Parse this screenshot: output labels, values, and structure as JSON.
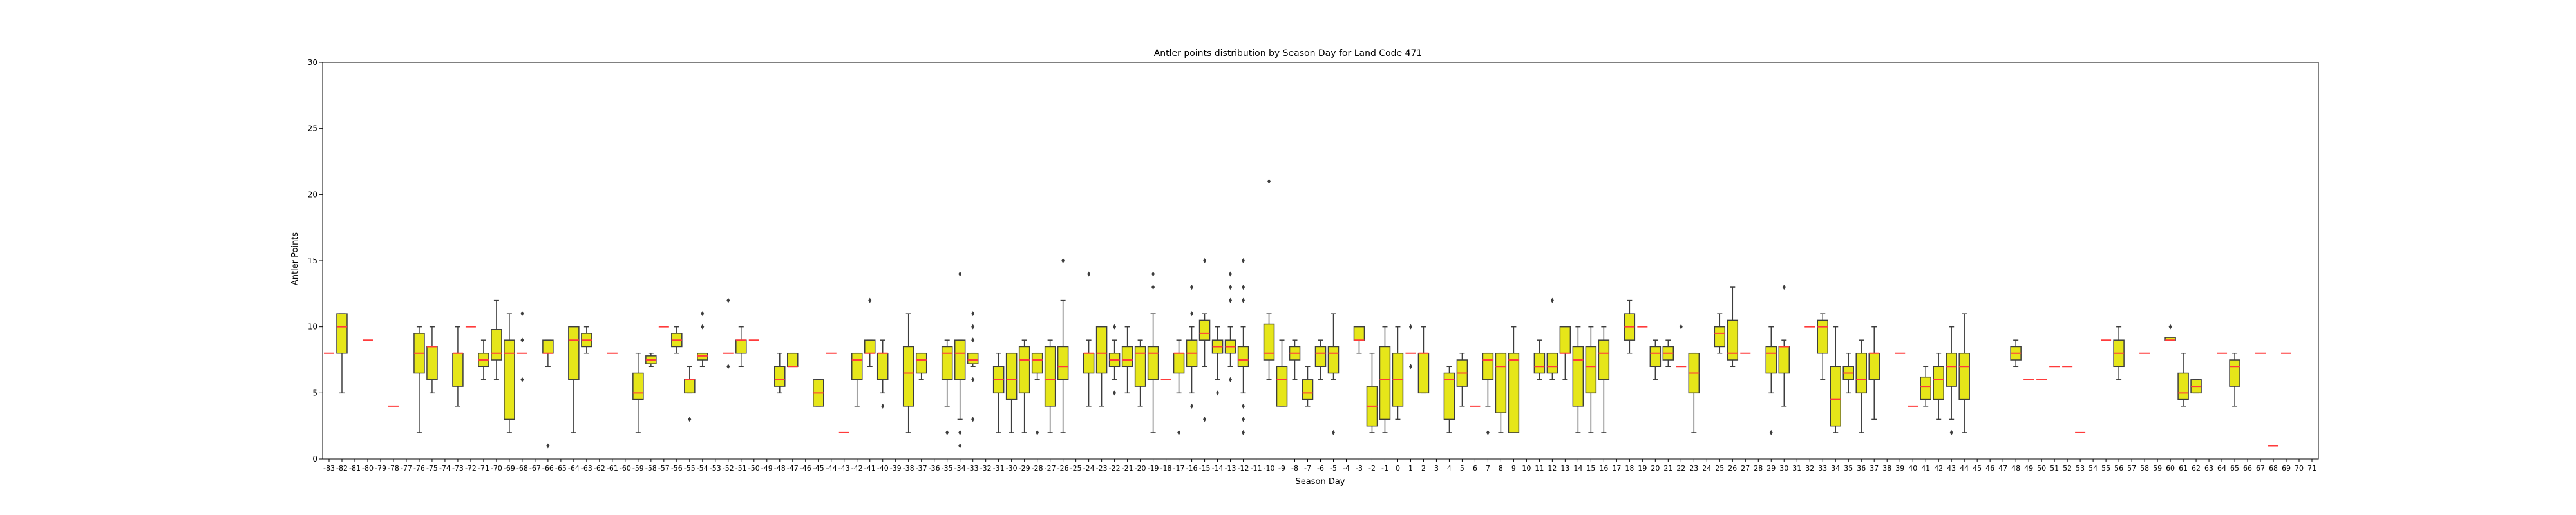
{
  "chart_data": {
    "type": "box",
    "title": "Antler points distribution by Season Day for Land Code 471",
    "xlabel": "Season Day",
    "ylabel": "Antler Points",
    "ylim": [
      0,
      30
    ],
    "yticks": [
      0,
      5,
      10,
      15,
      20,
      25,
      30
    ],
    "grid": false,
    "box_color": "#e6e619",
    "median_color": "#ff3b3b",
    "x_categories": [
      "-83",
      "-82",
      "-81",
      "-80",
      "-79",
      "-78",
      "-77",
      "-76",
      "-75",
      "-74",
      "-73",
      "-72",
      "-71",
      "-70",
      "-69",
      "-68",
      "-67",
      "-66",
      "-65",
      "-64",
      "-63",
      "-62",
      "-61",
      "-60",
      "-59",
      "-58",
      "-57",
      "-56",
      "-55",
      "-54",
      "-53",
      "-52",
      "-51",
      "-50",
      "-49",
      "-48",
      "-47",
      "-46",
      "-45",
      "-44",
      "-43",
      "-42",
      "-41",
      "-40",
      "-39",
      "-38",
      "-37",
      "-36",
      "-35",
      "-34",
      "-33",
      "-32",
      "-31",
      "-30",
      "-29",
      "-28",
      "-27",
      "-26",
      "-25",
      "-24",
      "-23",
      "-22",
      "-21",
      "-20",
      "-19",
      "-18",
      "-17",
      "-16",
      "-15",
      "-14",
      "-13",
      "-12",
      "-11",
      "-10",
      "-9",
      "-8",
      "-7",
      "-6",
      "-5",
      "-4",
      "-3",
      "-2",
      "-1",
      "0",
      "1",
      "2",
      "3",
      "4",
      "5",
      "6",
      "7",
      "8",
      "9",
      "10",
      "11",
      "12",
      "13",
      "14",
      "15",
      "16",
      "17",
      "18",
      "19",
      "20",
      "21",
      "22",
      "23",
      "24",
      "25",
      "26",
      "27",
      "28",
      "29",
      "30",
      "31",
      "32",
      "33",
      "34",
      "35",
      "36",
      "37",
      "38",
      "39",
      "40",
      "41",
      "42",
      "43",
      "44",
      "45",
      "46",
      "47",
      "48",
      "49",
      "50",
      "51",
      "52",
      "53",
      "54",
      "55",
      "56",
      "57",
      "58",
      "59",
      "60",
      "61",
      "62",
      "63",
      "64",
      "65",
      "66",
      "67",
      "68",
      "69",
      "70",
      "71"
    ],
    "boxes": [
      {
        "x": "-83",
        "median": 8
      },
      {
        "x": "-82",
        "q1": 8,
        "median": 10,
        "q3": 11,
        "whisker_low": 5,
        "whisker_high": 11
      },
      {
        "x": "-80",
        "median": 9
      },
      {
        "x": "-78",
        "median": 4
      },
      {
        "x": "-76",
        "q1": 6.5,
        "median": 8,
        "q3": 9.5,
        "whisker_low": 2,
        "whisker_high": 10
      },
      {
        "x": "-75",
        "q1": 6,
        "median": 8.5,
        "q3": 8.5,
        "whisker_low": 5,
        "whisker_high": 10
      },
      {
        "x": "-73",
        "q1": 5.5,
        "median": 8,
        "q3": 8,
        "whisker_low": 4,
        "whisker_high": 10
      },
      {
        "x": "-72",
        "median": 10
      },
      {
        "x": "-71",
        "q1": 7,
        "median": 7.5,
        "q3": 8,
        "whisker_low": 6,
        "whisker_high": 9
      },
      {
        "x": "-70",
        "q1": 7.5,
        "median": 8,
        "q3": 9.8,
        "whisker_low": 6,
        "whisker_high": 12
      },
      {
        "x": "-69",
        "q1": 3,
        "median": 8,
        "q3": 9,
        "whisker_low": 2,
        "whisker_high": 11
      },
      {
        "x": "-68",
        "median": 8,
        "outliers": [
          11,
          9,
          6
        ]
      },
      {
        "x": "-66",
        "q1": 8,
        "median": 8,
        "q3": 9,
        "whisker_low": 7,
        "whisker_high": 9,
        "outliers": [
          1
        ]
      },
      {
        "x": "-64",
        "q1": 6,
        "median": 9,
        "q3": 10,
        "whisker_low": 2,
        "whisker_high": 10
      },
      {
        "x": "-63",
        "q1": 8.5,
        "median": 9,
        "q3": 9.5,
        "whisker_low": 8,
        "whisker_high": 10
      },
      {
        "x": "-61",
        "median": 8
      },
      {
        "x": "-59",
        "q1": 4.5,
        "median": 5,
        "q3": 6.5,
        "whisker_low": 2,
        "whisker_high": 8
      },
      {
        "x": "-58",
        "q1": 7.2,
        "median": 7.5,
        "q3": 7.8,
        "whisker_low": 7,
        "whisker_high": 8
      },
      {
        "x": "-57",
        "median": 10
      },
      {
        "x": "-56",
        "q1": 8.5,
        "median": 9,
        "q3": 9.5,
        "whisker_low": 8,
        "whisker_high": 10
      },
      {
        "x": "-55",
        "q1": 5,
        "median": 6,
        "q3": 6,
        "whisker_low": 5,
        "whisker_high": 7,
        "outliers": [
          3
        ]
      },
      {
        "x": "-54",
        "q1": 7.5,
        "median": 7.8,
        "q3": 8,
        "whisker_low": 7,
        "whisker_high": 8,
        "outliers": [
          11,
          10
        ]
      },
      {
        "x": "-52",
        "median": 8,
        "outliers": [
          12,
          7
        ]
      },
      {
        "x": "-51",
        "q1": 8,
        "median": 9,
        "q3": 9,
        "whisker_low": 7,
        "whisker_high": 10
      },
      {
        "x": "-50",
        "median": 9
      },
      {
        "x": "-48",
        "q1": 5.5,
        "median": 6,
        "q3": 7,
        "whisker_low": 5,
        "whisker_high": 8
      },
      {
        "x": "-47",
        "q1": 7,
        "median": 7,
        "q3": 8,
        "whisker_low": 7,
        "whisker_high": 8
      },
      {
        "x": "-45",
        "q1": 4,
        "median": 5,
        "q3": 6,
        "whisker_low": 4,
        "whisker_high": 6
      },
      {
        "x": "-44",
        "median": 8
      },
      {
        "x": "-43",
        "median": 2
      },
      {
        "x": "-42",
        "q1": 6,
        "median": 7.5,
        "q3": 8,
        "whisker_low": 4,
        "whisker_high": 8
      },
      {
        "x": "-41",
        "q1": 8,
        "median": 8,
        "q3": 9,
        "whisker_low": 7,
        "whisker_high": 9,
        "outliers": [
          12
        ]
      },
      {
        "x": "-40",
        "q1": 6,
        "median": 8,
        "q3": 8,
        "whisker_low": 5,
        "whisker_high": 9,
        "outliers": [
          4
        ]
      },
      {
        "x": "-38",
        "q1": 4,
        "median": 6.5,
        "q3": 8.5,
        "whisker_low": 2,
        "whisker_high": 11
      },
      {
        "x": "-37",
        "q1": 6.5,
        "median": 7.5,
        "q3": 8,
        "whisker_low": 6,
        "whisker_high": 8
      },
      {
        "x": "-35",
        "q1": 6,
        "median": 8,
        "q3": 8.5,
        "whisker_low": 4,
        "whisker_high": 9,
        "outliers": [
          2
        ]
      },
      {
        "x": "-34",
        "q1": 6,
        "median": 8,
        "q3": 9,
        "whisker_low": 3,
        "whisker_high": 9,
        "outliers": [
          14,
          2,
          1
        ]
      },
      {
        "x": "-33",
        "q1": 7.2,
        "median": 7.5,
        "q3": 8,
        "whisker_low": 7,
        "whisker_high": 8,
        "outliers": [
          11,
          10,
          9,
          6,
          3
        ]
      },
      {
        "x": "-31",
        "q1": 5,
        "median": 6,
        "q3": 7,
        "whisker_low": 2,
        "whisker_high": 8
      },
      {
        "x": "-30",
        "q1": 4.5,
        "median": 6,
        "q3": 8,
        "whisker_low": 2,
        "whisker_high": 8
      },
      {
        "x": "-29",
        "q1": 5,
        "median": 7.5,
        "q3": 8.5,
        "whisker_low": 2,
        "whisker_high": 9
      },
      {
        "x": "-28",
        "q1": 6.5,
        "median": 7.5,
        "q3": 8,
        "whisker_low": 6,
        "whisker_high": 8,
        "outliers": [
          2
        ]
      },
      {
        "x": "-27",
        "q1": 4,
        "median": 6,
        "q3": 8.5,
        "whisker_low": 2,
        "whisker_high": 9
      },
      {
        "x": "-26",
        "q1": 6,
        "median": 7,
        "q3": 8.5,
        "whisker_low": 2,
        "whisker_high": 12,
        "outliers": [
          15
        ]
      },
      {
        "x": "-24",
        "q1": 6.5,
        "median": 8,
        "q3": 8,
        "whisker_low": 4,
        "whisker_high": 9,
        "outliers": [
          14
        ]
      },
      {
        "x": "-23",
        "q1": 6.5,
        "median": 8,
        "q3": 10,
        "whisker_low": 4,
        "whisker_high": 10
      },
      {
        "x": "-22",
        "q1": 7,
        "median": 7.5,
        "q3": 8,
        "whisker_low": 6,
        "whisker_high": 9,
        "outliers": [
          10,
          5
        ]
      },
      {
        "x": "-21",
        "q1": 7,
        "median": 7.5,
        "q3": 8.5,
        "whisker_low": 5,
        "whisker_high": 10
      },
      {
        "x": "-20",
        "q1": 5.5,
        "median": 8,
        "q3": 8.5,
        "whisker_low": 4,
        "whisker_high": 9
      },
      {
        "x": "-19",
        "q1": 6,
        "median": 8,
        "q3": 8.5,
        "whisker_low": 2,
        "whisker_high": 11,
        "outliers": [
          14,
          13
        ]
      },
      {
        "x": "-18",
        "median": 6
      },
      {
        "x": "-17",
        "q1": 6.5,
        "median": 8,
        "q3": 8,
        "whisker_low": 5,
        "whisker_high": 9,
        "outliers": [
          2
        ]
      },
      {
        "x": "-16",
        "q1": 7,
        "median": 8,
        "q3": 9,
        "whisker_low": 5,
        "whisker_high": 10,
        "outliers": [
          13,
          11,
          4
        ]
      },
      {
        "x": "-15",
        "q1": 9,
        "median": 9.5,
        "q3": 10.5,
        "whisker_low": 7,
        "whisker_high": 11,
        "outliers": [
          15,
          3
        ]
      },
      {
        "x": "-14",
        "q1": 8,
        "median": 8.5,
        "q3": 9,
        "whisker_low": 6,
        "whisker_high": 10,
        "outliers": [
          5
        ]
      },
      {
        "x": "-13",
        "q1": 8,
        "median": 8.5,
        "q3": 9,
        "whisker_low": 7,
        "whisker_high": 10,
        "outliers": [
          14,
          13,
          12,
          6
        ]
      },
      {
        "x": "-12",
        "q1": 7,
        "median": 7.5,
        "q3": 8.5,
        "whisker_low": 5,
        "whisker_high": 10,
        "outliers": [
          15,
          13,
          12,
          4,
          3,
          2
        ]
      },
      {
        "x": "-10",
        "q1": 7.5,
        "median": 8,
        "q3": 10.2,
        "whisker_low": 6,
        "whisker_high": 11,
        "outliers": [
          21
        ]
      },
      {
        "x": "-9",
        "q1": 4,
        "median": 6,
        "q3": 7,
        "whisker_low": 4,
        "whisker_high": 9
      },
      {
        "x": "-8",
        "q1": 7.5,
        "median": 8,
        "q3": 8.5,
        "whisker_low": 6,
        "whisker_high": 9
      },
      {
        "x": "-7",
        "q1": 4.5,
        "median": 5,
        "q3": 6,
        "whisker_low": 4,
        "whisker_high": 7
      },
      {
        "x": "-6",
        "q1": 7,
        "median": 8,
        "q3": 8.5,
        "whisker_low": 6,
        "whisker_high": 9
      },
      {
        "x": "-5",
        "q1": 6.5,
        "median": 8,
        "q3": 8.5,
        "whisker_low": 6,
        "whisker_high": 11,
        "outliers": [
          2
        ]
      },
      {
        "x": "-3",
        "q1": 9,
        "median": 9,
        "q3": 10,
        "whisker_low": 8,
        "whisker_high": 10
      },
      {
        "x": "-2",
        "q1": 2.5,
        "median": 4,
        "q3": 5.5,
        "whisker_low": 2,
        "whisker_high": 8
      },
      {
        "x": "-1",
        "q1": 3,
        "median": 6,
        "q3": 8.5,
        "whisker_low": 2,
        "whisker_high": 10
      },
      {
        "x": "0",
        "q1": 4,
        "median": 6,
        "q3": 8,
        "whisker_low": 3,
        "whisker_high": 10
      },
      {
        "x": "1",
        "median": 8,
        "outliers": [
          10,
          7
        ]
      },
      {
        "x": "2",
        "q1": 5,
        "median": 8,
        "q3": 8,
        "whisker_low": 5,
        "whisker_high": 10
      },
      {
        "x": "4",
        "q1": 3,
        "median": 6,
        "q3": 6.5,
        "whisker_low": 2,
        "whisker_high": 7
      },
      {
        "x": "5",
        "q1": 5.5,
        "median": 6.5,
        "q3": 7.5,
        "whisker_low": 4,
        "whisker_high": 8
      },
      {
        "x": "6",
        "median": 4
      },
      {
        "x": "7",
        "q1": 6,
        "median": 7.5,
        "q3": 8,
        "whisker_low": 4,
        "whisker_high": 8,
        "outliers": [
          2
        ]
      },
      {
        "x": "8",
        "q1": 3.5,
        "median": 7,
        "q3": 8,
        "whisker_low": 2,
        "whisker_high": 8
      },
      {
        "x": "9",
        "q1": 2,
        "median": 7.5,
        "q3": 8,
        "whisker_low": 2,
        "whisker_high": 10
      },
      {
        "x": "11",
        "q1": 6.5,
        "median": 7,
        "q3": 8,
        "whisker_low": 6,
        "whisker_high": 9
      },
      {
        "x": "12",
        "q1": 6.5,
        "median": 7,
        "q3": 8,
        "whisker_low": 6,
        "whisker_high": 8,
        "outliers": [
          12
        ]
      },
      {
        "x": "13",
        "q1": 8,
        "median": 8,
        "q3": 10,
        "whisker_low": 6,
        "whisker_high": 10
      },
      {
        "x": "14",
        "q1": 4,
        "median": 7.5,
        "q3": 8.5,
        "whisker_low": 2,
        "whisker_high": 10
      },
      {
        "x": "15",
        "q1": 5,
        "median": 7,
        "q3": 8.5,
        "whisker_low": 2,
        "whisker_high": 10
      },
      {
        "x": "16",
        "q1": 6,
        "median": 8,
        "q3": 9,
        "whisker_low": 2,
        "whisker_high": 10
      },
      {
        "x": "18",
        "q1": 9,
        "median": 10,
        "q3": 11,
        "whisker_low": 8,
        "whisker_high": 12
      },
      {
        "x": "19",
        "median": 10
      },
      {
        "x": "20",
        "q1": 7,
        "median": 8,
        "q3": 8.5,
        "whisker_low": 6,
        "whisker_high": 9
      },
      {
        "x": "21",
        "q1": 7.5,
        "median": 8,
        "q3": 8.5,
        "whisker_low": 7,
        "whisker_high": 9
      },
      {
        "x": "22",
        "median": 7,
        "outliers": [
          10
        ]
      },
      {
        "x": "23",
        "q1": 5,
        "median": 6.5,
        "q3": 8,
        "whisker_low": 2,
        "whisker_high": 8
      },
      {
        "x": "25",
        "q1": 8.5,
        "median": 9.5,
        "q3": 10,
        "whisker_low": 8,
        "whisker_high": 11
      },
      {
        "x": "26",
        "q1": 7.5,
        "median": 8,
        "q3": 10.5,
        "whisker_low": 7,
        "whisker_high": 13
      },
      {
        "x": "27",
        "median": 8
      },
      {
        "x": "29",
        "q1": 6.5,
        "median": 8,
        "q3": 8.5,
        "whisker_low": 5,
        "whisker_high": 10,
        "outliers": [
          2
        ]
      },
      {
        "x": "30",
        "q1": 6.5,
        "median": 8.5,
        "q3": 8.5,
        "whisker_low": 4,
        "whisker_high": 9,
        "outliers": [
          13
        ]
      },
      {
        "x": "32",
        "median": 10
      },
      {
        "x": "33",
        "q1": 8,
        "median": 10,
        "q3": 10.5,
        "whisker_low": 6,
        "whisker_high": 11
      },
      {
        "x": "34",
        "q1": 2.5,
        "median": 4.5,
        "q3": 7,
        "whisker_low": 2,
        "whisker_high": 10
      },
      {
        "x": "35",
        "q1": 6,
        "median": 6.5,
        "q3": 7,
        "whisker_low": 5,
        "whisker_high": 8
      },
      {
        "x": "36",
        "q1": 5,
        "median": 6,
        "q3": 8,
        "whisker_low": 2,
        "whisker_high": 9
      },
      {
        "x": "37",
        "q1": 6,
        "median": 8,
        "q3": 8,
        "whisker_low": 3,
        "whisker_high": 10
      },
      {
        "x": "39",
        "median": 8
      },
      {
        "x": "40",
        "median": 4
      },
      {
        "x": "41",
        "q1": 4.5,
        "median": 5.5,
        "q3": 6.2,
        "whisker_low": 4,
        "whisker_high": 7
      },
      {
        "x": "42",
        "q1": 4.5,
        "median": 6,
        "q3": 7,
        "whisker_low": 3,
        "whisker_high": 8
      },
      {
        "x": "43",
        "q1": 5.5,
        "median": 7,
        "q3": 8,
        "whisker_low": 3,
        "whisker_high": 10,
        "outliers": [
          2
        ]
      },
      {
        "x": "44",
        "q1": 4.5,
        "median": 7,
        "q3": 8,
        "whisker_low": 2,
        "whisker_high": 11
      },
      {
        "x": "48",
        "q1": 7.5,
        "median": 8,
        "q3": 8.5,
        "whisker_low": 7,
        "whisker_high": 9
      },
      {
        "x": "49",
        "median": 6
      },
      {
        "x": "50",
        "median": 6
      },
      {
        "x": "51",
        "median": 7
      },
      {
        "x": "52",
        "median": 7
      },
      {
        "x": "53",
        "median": 2
      },
      {
        "x": "55",
        "median": 9
      },
      {
        "x": "56",
        "q1": 7,
        "median": 8,
        "q3": 9,
        "whisker_low": 6,
        "whisker_high": 10
      },
      {
        "x": "58",
        "median": 8
      },
      {
        "x": "60",
        "q1": 9,
        "median": 9,
        "q3": 9.2,
        "whisker_low": 9,
        "whisker_high": 9.2,
        "outliers": [
          10
        ]
      },
      {
        "x": "61",
        "q1": 4.5,
        "median": 5,
        "q3": 6.5,
        "whisker_low": 4,
        "whisker_high": 8
      },
      {
        "x": "62",
        "q1": 5,
        "median": 5.5,
        "q3": 6,
        "whisker_low": 5,
        "whisker_high": 6
      },
      {
        "x": "64",
        "median": 8
      },
      {
        "x": "65",
        "q1": 5.5,
        "median": 7,
        "q3": 7.5,
        "whisker_low": 4,
        "whisker_high": 8
      },
      {
        "x": "67",
        "median": 8
      },
      {
        "x": "68",
        "median": 1
      },
      {
        "x": "69",
        "median": 8
      }
    ]
  }
}
